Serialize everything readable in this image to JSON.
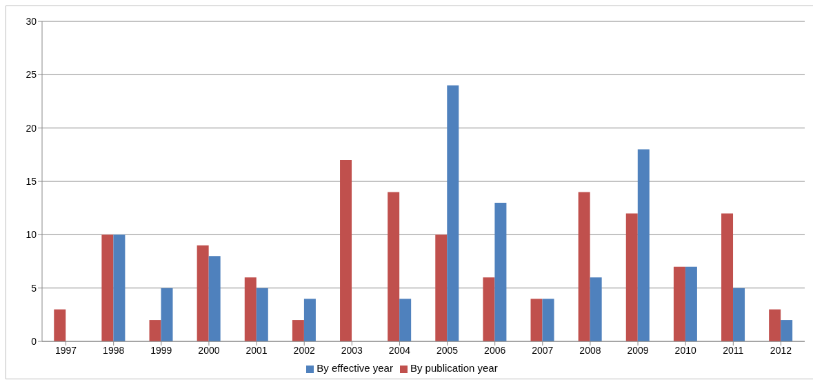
{
  "chart_data": {
    "type": "bar",
    "categories": [
      "1997",
      "1998",
      "1999",
      "2000",
      "2001",
      "2002",
      "2003",
      "2004",
      "2005",
      "2006",
      "2007",
      "2008",
      "2009",
      "2010",
      "2011",
      "2012"
    ],
    "series": [
      {
        "name": "By publication year",
        "color": "#c0504d",
        "values": [
          3,
          10,
          2,
          9,
          6,
          2,
          17,
          14,
          10,
          6,
          4,
          14,
          12,
          7,
          12,
          3
        ]
      },
      {
        "name": "By effective year",
        "color": "#4f81bd",
        "values": [
          0,
          10,
          5,
          8,
          5,
          4,
          0,
          4,
          24,
          13,
          4,
          6,
          18,
          7,
          5,
          2
        ]
      }
    ],
    "ylim": [
      0,
      30
    ],
    "yticks": [
      0,
      5,
      10,
      15,
      20,
      25,
      30
    ],
    "grid": "y",
    "legend": "bottom"
  }
}
